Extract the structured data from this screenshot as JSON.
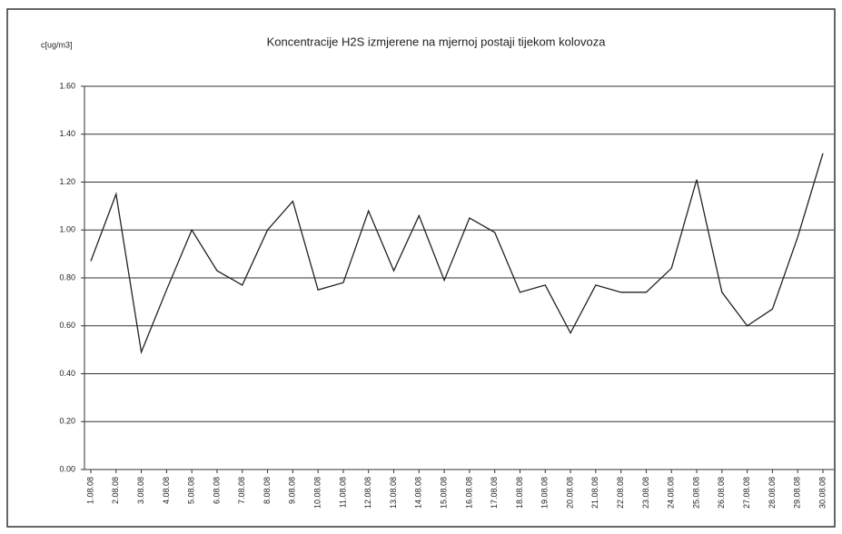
{
  "chart_data": {
    "type": "line",
    "title": "Koncentracije H2S izmjerene na mjernoj postaji tijekom kolovoza",
    "y_label": "c[ug/m3]",
    "categories": [
      "1.08.08",
      "2.08.08",
      "3.08.08",
      "4.08.08",
      "5.08.08",
      "6.08.08",
      "7.08.08",
      "8.08.08",
      "9.08.08",
      "10.08.08",
      "11.08.08",
      "12.08.08",
      "13.08.08",
      "14.08.08",
      "15.08.08",
      "16.08.08",
      "17.08.08",
      "18.08.08",
      "19.08.08",
      "20.08.08",
      "21.08.08",
      "22.08.08",
      "23.08.08",
      "24.08.08",
      "25.08.08",
      "26.08.08",
      "27.08.08",
      "28.08.08",
      "29.08.08",
      "30.08.08"
    ],
    "values": [
      0.87,
      1.15,
      0.49,
      0.75,
      1.0,
      0.83,
      0.77,
      1.0,
      1.12,
      0.75,
      0.78,
      1.08,
      0.83,
      1.06,
      0.79,
      1.05,
      0.99,
      0.74,
      0.77,
      0.57,
      0.77,
      0.74,
      0.74,
      0.84,
      1.21,
      0.74,
      0.6,
      0.67,
      0.97,
      1.32
    ],
    "color": "#222222",
    "ylim": [
      0,
      1.6
    ],
    "yticks": [
      {
        "value": 0,
        "label": "0.00"
      },
      {
        "value": 0.2,
        "label": "0.20"
      },
      {
        "value": 0.4,
        "label": "0.40"
      },
      {
        "value": 0.6,
        "label": "0.60"
      },
      {
        "value": 0.8,
        "label": "0.80"
      },
      {
        "value": 1.0,
        "label": "1.00"
      },
      {
        "value": 1.2,
        "label": "1.20"
      },
      {
        "value": 1.4,
        "label": "1.40"
      },
      {
        "value": 1.6,
        "label": "1.60"
      }
    ],
    "grid": true
  }
}
